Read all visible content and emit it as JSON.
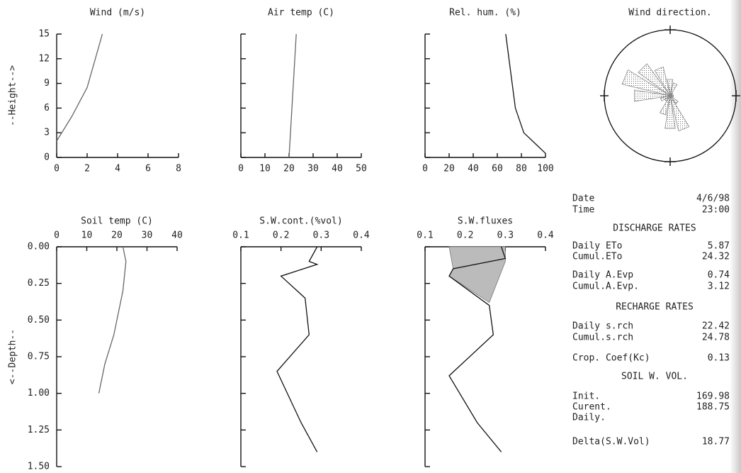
{
  "chart_data": [
    {
      "type": "line",
      "title": "Wind (m/s)",
      "ylabel": "--Height-->",
      "xlim": [
        0,
        8
      ],
      "xticks": [
        0,
        2,
        4,
        6,
        8
      ],
      "ylim": [
        0,
        15
      ],
      "yticks": [
        0,
        3,
        6,
        9,
        12,
        15
      ],
      "show_ytick_labels": true,
      "xaxis_position": "bottom",
      "y_inverted": false,
      "color": "#555555",
      "series": [
        {
          "x": [
            0,
            0.5,
            1,
            2,
            3
          ],
          "values": [
            2,
            3.5,
            5,
            8.5,
            15
          ],
          "color": "#666666"
        }
      ]
    },
    {
      "type": "line",
      "title": "Air temp (C)",
      "xlim": [
        0,
        50
      ],
      "xticks": [
        0,
        10,
        20,
        30,
        40,
        50
      ],
      "ylim": [
        0,
        15
      ],
      "yticks": [
        0,
        3,
        6,
        9,
        12,
        15
      ],
      "show_ytick_labels": false,
      "xaxis_position": "bottom",
      "y_inverted": false,
      "series": [
        {
          "x": [
            20,
            21,
            22,
            23
          ],
          "values": [
            0,
            5,
            10,
            15
          ],
          "color": "#666666"
        }
      ]
    },
    {
      "type": "line",
      "title": "Rel. hum. (%)",
      "xlim": [
        0,
        100
      ],
      "xticks": [
        0,
        20,
        40,
        60,
        80,
        100
      ],
      "ylim": [
        0,
        15
      ],
      "yticks": [
        0,
        3,
        6,
        9,
        12,
        15
      ],
      "show_ytick_labels": false,
      "xaxis_position": "bottom",
      "y_inverted": false,
      "series": [
        {
          "x": [
            100,
            82,
            75,
            67
          ],
          "values": [
            0.5,
            3,
            6,
            15
          ],
          "color": "#111111"
        }
      ]
    },
    {
      "type": "rose",
      "title": "Wind direction.",
      "rlim": [
        0,
        1
      ],
      "directions": [
        0,
        22.5,
        45,
        67.5,
        90,
        112.5,
        135,
        157.5,
        180,
        202.5,
        225,
        247.5,
        270,
        292.5,
        315,
        337.5
      ],
      "values": [
        0.25,
        0.2,
        0.05,
        0.03,
        0.05,
        0.05,
        0.15,
        0.55,
        0.5,
        0.3,
        0.1,
        0.15,
        0.55,
        0.75,
        0.6,
        0.45
      ],
      "color": "#888888"
    },
    {
      "type": "line",
      "title": "Soil temp (C)",
      "ylabel": "<--Depth--",
      "xlim": [
        0,
        40
      ],
      "xticks": [
        0,
        10,
        20,
        30,
        40
      ],
      "ylim": [
        0,
        1.5
      ],
      "yticks": [
        {
          "value": 0,
          "label": "0.00"
        },
        {
          "value": 0.25,
          "label": "0.25"
        },
        {
          "value": 0.5,
          "label": "0.50"
        },
        {
          "value": 0.75,
          "label": "0.75"
        },
        {
          "value": 1,
          "label": "1.00"
        },
        {
          "value": 1.25,
          "label": "1.25"
        },
        {
          "value": 1.5,
          "label": "1.50"
        }
      ],
      "show_ytick_labels": true,
      "xaxis_position": "top",
      "y_inverted": true,
      "series": [
        {
          "x": [
            22,
            23,
            22,
            19,
            16,
            14
          ],
          "values": [
            0,
            0.1,
            0.3,
            0.6,
            0.8,
            1.0
          ],
          "color": "#666666"
        }
      ]
    },
    {
      "type": "line",
      "title": "S.W.cont.(%vol)",
      "xlim": [
        0.1,
        0.4
      ],
      "xticks": [
        0.1,
        0.2,
        0.3,
        0.4
      ],
      "ylim": [
        0,
        1.5
      ],
      "yticks": [
        0,
        0.25,
        0.5,
        0.75,
        1,
        1.25,
        1.5
      ],
      "show_ytick_labels": false,
      "xaxis_position": "top",
      "y_inverted": true,
      "series": [
        {
          "x": [
            0.29,
            0.27,
            0.29,
            0.2,
            0.26,
            0.27,
            0.19,
            0.25,
            0.29
          ],
          "values": [
            0,
            0.1,
            0.12,
            0.2,
            0.35,
            0.6,
            0.85,
            1.2,
            1.4
          ],
          "color": "#111111"
        }
      ]
    },
    {
      "type": "line",
      "title": "S.W.fluxes",
      "xlim": [
        0.1,
        0.4
      ],
      "xticks": [
        0.1,
        0.2,
        0.3,
        0.4
      ],
      "ylim": [
        0,
        1.5
      ],
      "yticks": [
        0,
        0.25,
        0.5,
        0.75,
        1,
        1.25,
        1.5
      ],
      "show_ytick_labels": false,
      "xaxis_position": "top",
      "y_inverted": true,
      "series": [
        {
          "x": [
            0.16,
            0.3,
            0.3,
            0.26,
            0.16,
            0.17,
            0.16
          ],
          "values": [
            0,
            0,
            0.1,
            0.38,
            0.2,
            0.15,
            0
          ],
          "color": "#bbbbbb",
          "fill": true
        },
        {
          "x": [
            0.29,
            0.3,
            0.17,
            0.16,
            0.26,
            0.27,
            0.16,
            0.23,
            0.29
          ],
          "values": [
            0,
            0.08,
            0.15,
            0.2,
            0.4,
            0.6,
            0.88,
            1.2,
            1.4
          ],
          "color": "#111111"
        }
      ]
    }
  ],
  "summary": [
    {
      "label": "Date",
      "value": "4/6/98"
    },
    {
      "label": "Time",
      "value": "23:00"
    },
    {
      "heading": "DISCHARGE RATES"
    },
    {
      "label": "Daily ETo",
      "value": "5.87"
    },
    {
      "label": "Cumul.ETo",
      "value": "24.32"
    },
    {
      "label": "Daily A.Evp",
      "value": "0.74"
    },
    {
      "label": "Cumul.A.Evp.",
      "value": "3.12"
    },
    {
      "heading": "RECHARGE RATES"
    },
    {
      "label": "Daily s.rch",
      "value": "22.42"
    },
    {
      "label": "Cumul.s.rch",
      "value": "24.78"
    },
    {
      "label": "Crop. Coef(Kc)",
      "value": "0.13"
    },
    {
      "heading": "SOIL W. VOL."
    },
    {
      "label": "Init.",
      "value": "169.98"
    },
    {
      "label": "Curent.",
      "value": "188.75"
    },
    {
      "label": "Daily."
    },
    {
      "label": "Delta(S.W.Vol)",
      "value": "18.77"
    }
  ]
}
